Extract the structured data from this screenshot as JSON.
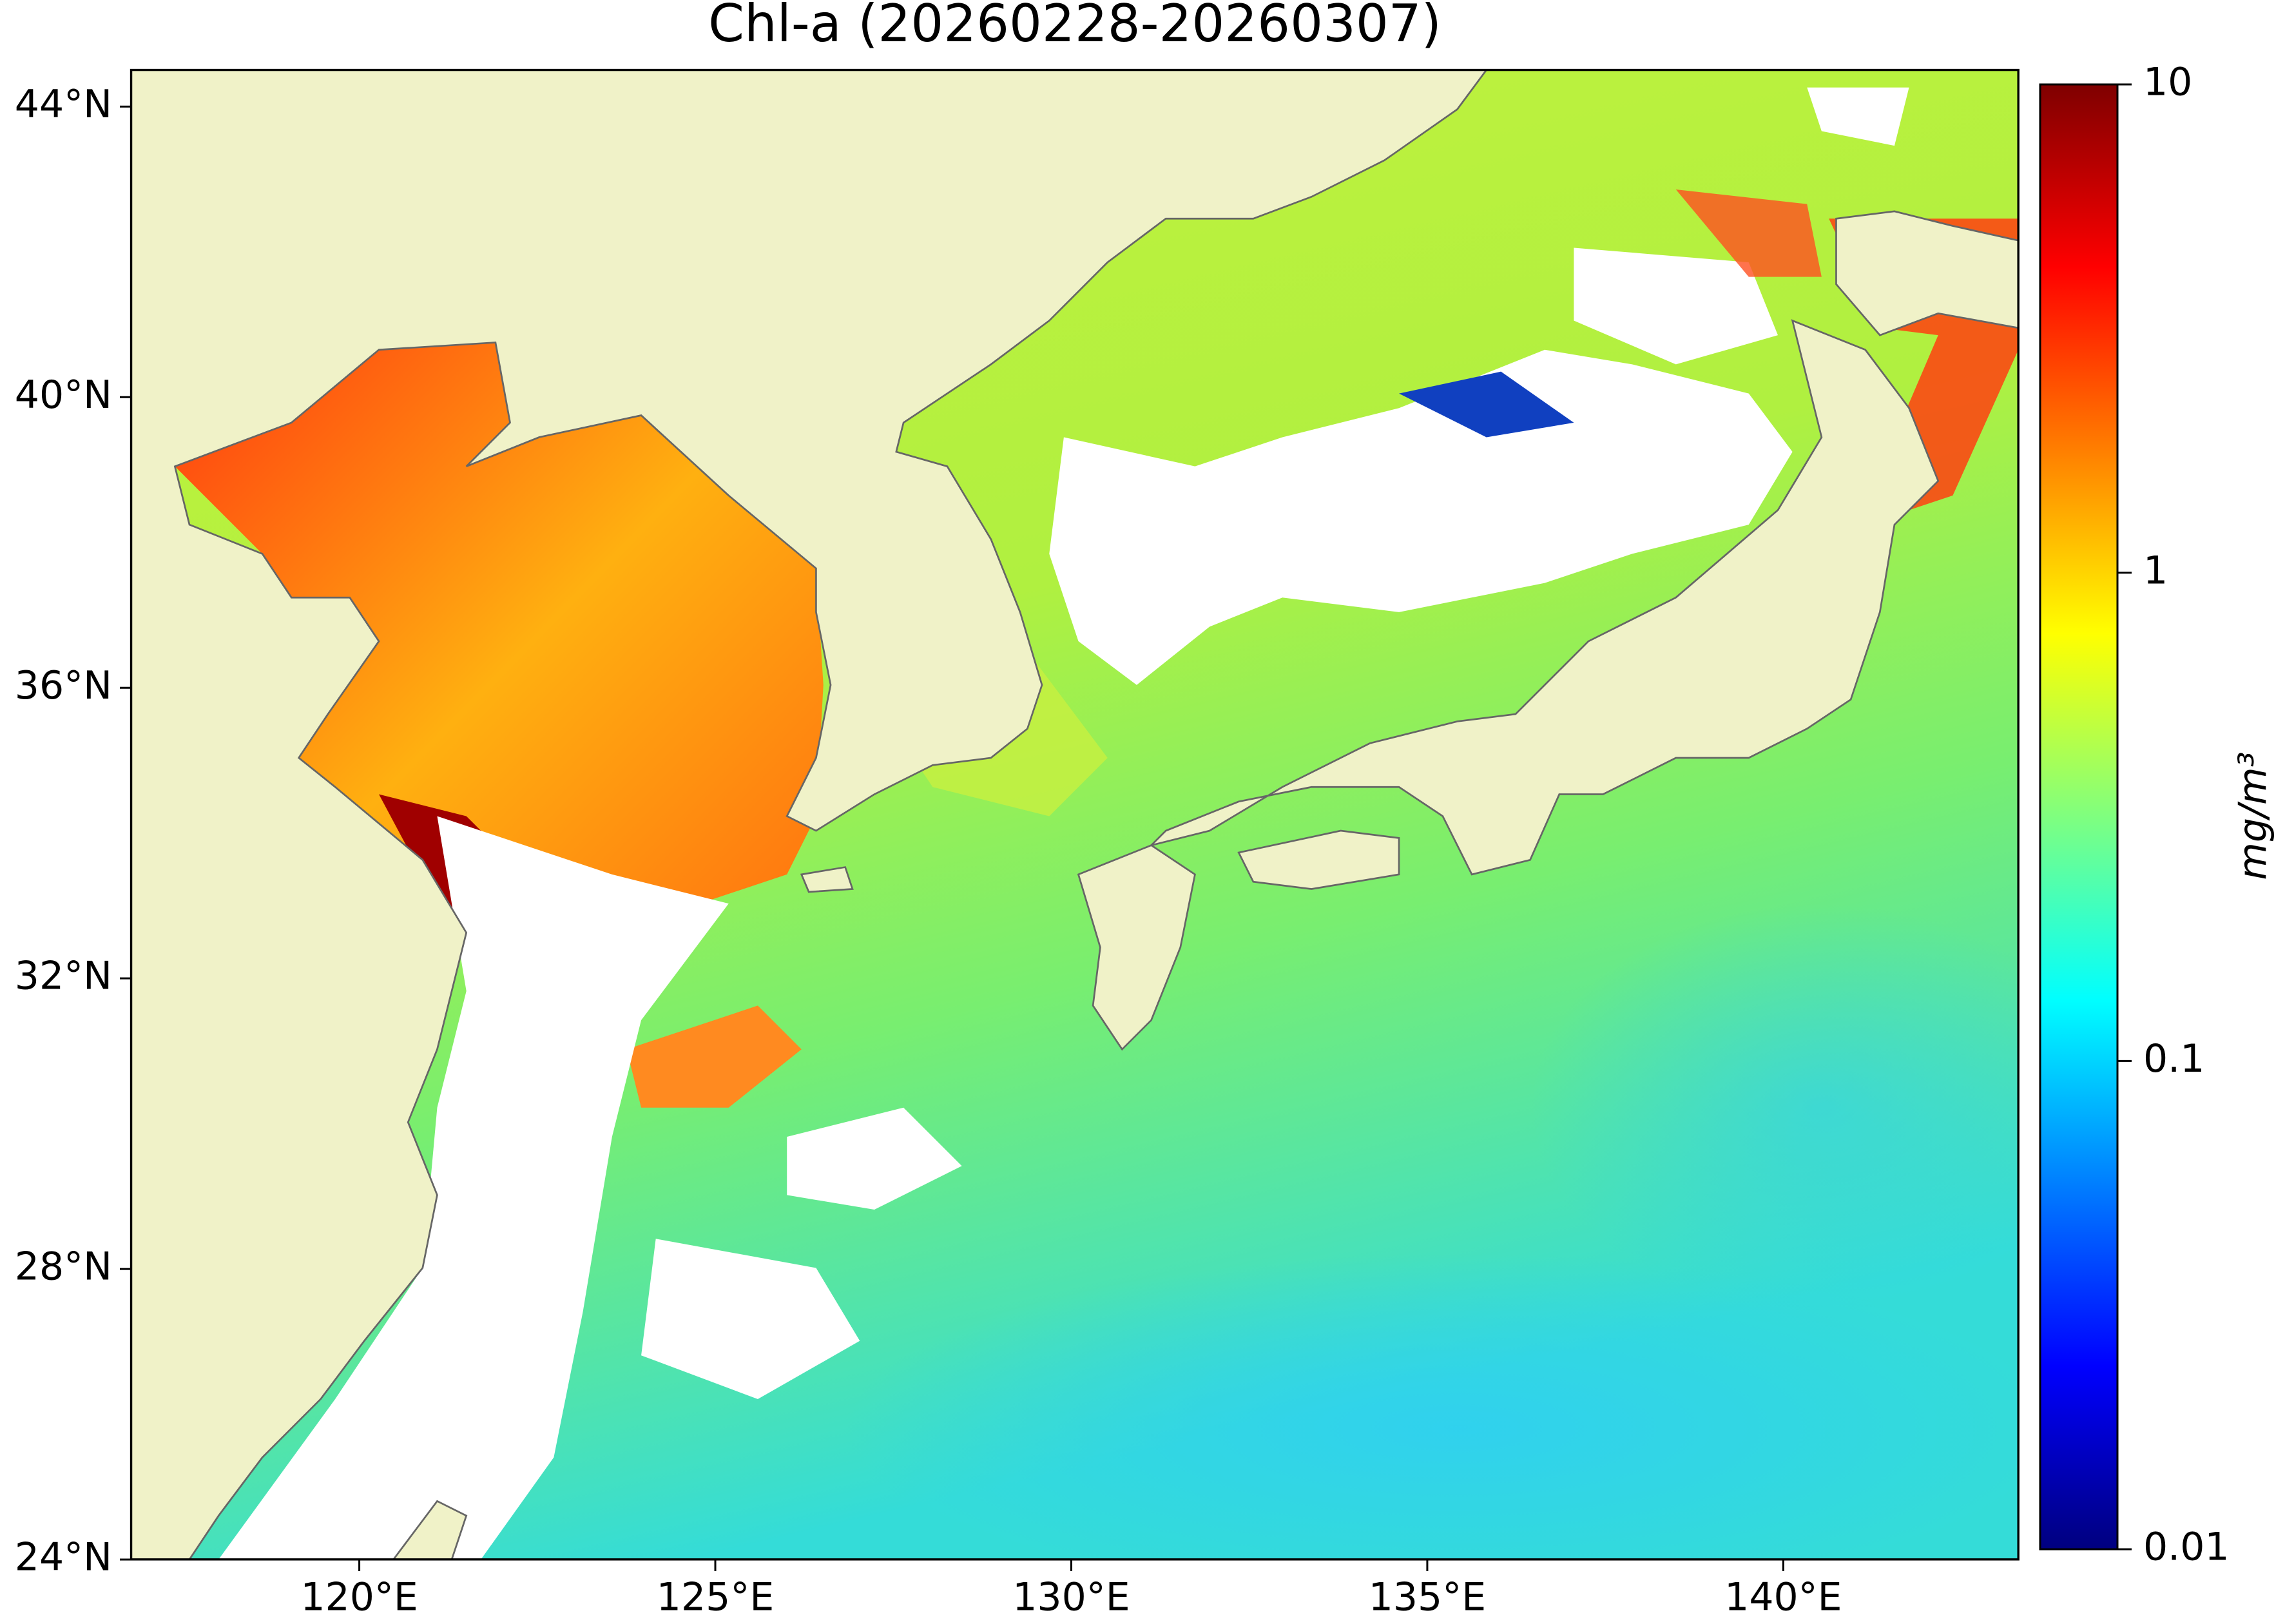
{
  "map": {
    "title": "Chl-a (20260228-20260307)",
    "xlim": [
      116.8,
      143.3
    ],
    "ylim": [
      24,
      44.5
    ],
    "xticks": [
      {
        "value": 120,
        "label": "120°E"
      },
      {
        "value": 125,
        "label": "125°E"
      },
      {
        "value": 130,
        "label": "130°E"
      },
      {
        "value": 135,
        "label": "135°E"
      },
      {
        "value": 140,
        "label": "140°E"
      }
    ],
    "yticks": [
      {
        "value": 24,
        "label": "24°N"
      },
      {
        "value": 28,
        "label": "28°N"
      },
      {
        "value": 32,
        "label": "32°N"
      },
      {
        "value": 36,
        "label": "36°N"
      },
      {
        "value": 40,
        "label": "40°N"
      },
      {
        "value": 44,
        "label": "44°N"
      }
    ]
  },
  "colorbar": {
    "label": "mg/m³",
    "lim": [
      0.01,
      10
    ],
    "ticks": [
      0.01,
      0.1,
      1,
      10
    ],
    "log": true,
    "colormap": [
      "#00007f",
      "#0000ff",
      "#007fff",
      "#00ffff",
      "#7fff7f",
      "#ffff00",
      "#ff7f00",
      "#ff0000",
      "#7f0000"
    ]
  }
}
